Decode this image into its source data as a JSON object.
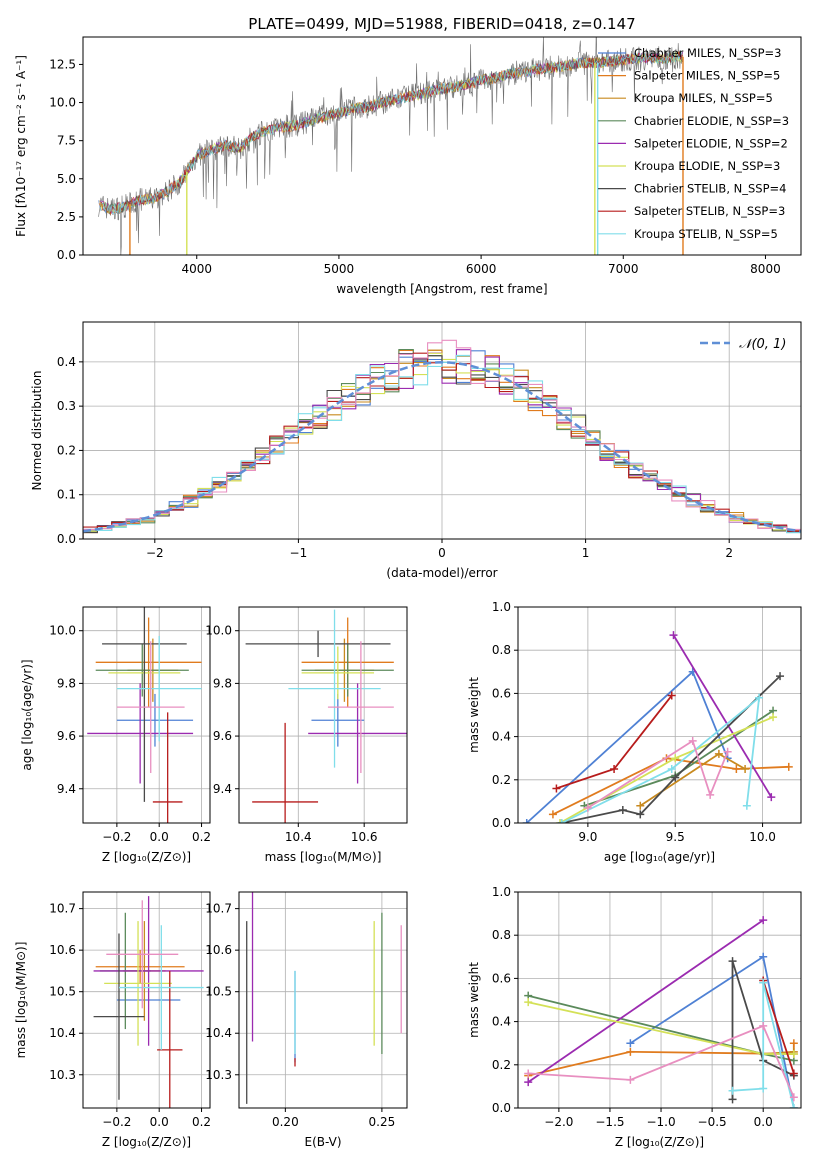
{
  "chart_data": [
    {
      "type": "line",
      "title": "PLATE=0499, MJD=51988, FIBERID=0418, z=0.147",
      "xlabel": "wavelength [Angstrom, rest frame]",
      "ylabel": "Flux [fλ10⁻¹⁷ erg cm⁻² s⁻¹ A⁻¹]",
      "xlim": [
        3200,
        8250
      ],
      "ylim": [
        0,
        14.3
      ],
      "xticks": [
        4000,
        5000,
        6000,
        7000,
        8000
      ],
      "yticks": [
        0.0,
        2.5,
        5.0,
        7.5,
        10.0,
        12.5
      ],
      "legend_position": "upper-right",
      "legend": [
        {
          "name": "Chabrier MILES, N_SSP=3",
          "color": "#4f81d4"
        },
        {
          "name": "Salpeter MILES, N_SSP=5",
          "color": "#e07b1e"
        },
        {
          "name": "Kroupa MILES, N_SSP=5",
          "color": "#c88a1f"
        },
        {
          "name": "Chabrier ELODIE, N_SSP=3",
          "color": "#5b8a5b"
        },
        {
          "name": "Salpeter ELODIE, N_SSP=2",
          "color": "#9b2bb0"
        },
        {
          "name": "Kroupa ELODIE, N_SSP=3",
          "color": "#d4e157"
        },
        {
          "name": "Chabrier STELIB, N_SSP=4",
          "color": "#4a4a4a"
        },
        {
          "name": "Salpeter STELIB, N_SSP=3",
          "color": "#b71c1c"
        },
        {
          "name": "Kroupa STELIB, N_SSP=5",
          "color": "#80deea"
        }
      ],
      "spectrum_shape": [
        [
          3310,
          3.3
        ],
        [
          3400,
          3.0
        ],
        [
          3500,
          3.2
        ],
        [
          3600,
          3.6
        ],
        [
          3700,
          3.7
        ],
        [
          3800,
          4.2
        ],
        [
          3900,
          5.0
        ],
        [
          4000,
          6.5
        ],
        [
          4100,
          6.9
        ],
        [
          4200,
          7.2
        ],
        [
          4300,
          7.0
        ],
        [
          4400,
          7.8
        ],
        [
          4500,
          8.2
        ],
        [
          4600,
          8.4
        ],
        [
          4700,
          8.5
        ],
        [
          4800,
          8.8
        ],
        [
          4900,
          9.1
        ],
        [
          5000,
          9.3
        ],
        [
          5100,
          9.6
        ],
        [
          5200,
          9.7
        ],
        [
          5300,
          10.0
        ],
        [
          5400,
          10.2
        ],
        [
          5500,
          10.4
        ],
        [
          5600,
          10.6
        ],
        [
          5700,
          10.9
        ],
        [
          5800,
          11.0
        ],
        [
          5900,
          11.2
        ],
        [
          6000,
          11.5
        ],
        [
          6100,
          11.6
        ],
        [
          6200,
          11.9
        ],
        [
          6300,
          12.0
        ],
        [
          6400,
          12.2
        ],
        [
          6500,
          12.3
        ],
        [
          6600,
          12.4
        ],
        [
          6700,
          12.6
        ],
        [
          6800,
          12.6
        ],
        [
          6900,
          12.7
        ],
        [
          7000,
          12.8
        ],
        [
          7100,
          12.9
        ],
        [
          7300,
          12.9
        ],
        [
          7400,
          13.0
        ]
      ],
      "range_drops": [
        {
          "x": 3530,
          "color": "#e07b1e"
        },
        {
          "x": 3930,
          "color": "#d4e157"
        },
        {
          "x": 6800,
          "color": "#d4e157"
        },
        {
          "x": 6820,
          "color": "#80deea"
        },
        {
          "x": 7420,
          "color": "#e07b1e"
        }
      ]
    },
    {
      "type": "histogram",
      "xlabel": "(data-model)/error",
      "ylabel": "Normed distribution",
      "xlim": [
        -2.5,
        2.5
      ],
      "ylim": [
        0,
        0.49
      ],
      "xticks": [
        -2,
        -1,
        0,
        1,
        2
      ],
      "yticks": [
        0.0,
        0.1,
        0.2,
        0.3,
        0.4
      ],
      "legend_position": "upper-right",
      "legend": [
        {
          "name": "𝒩(0, 1)",
          "color": "#5f8fd6"
        }
      ],
      "bin_width": 0.1,
      "bin_start": -2.5
    },
    {
      "type": "scatter",
      "xlabel": "Z [log₁₀(Z/Z⊙)]",
      "ylabel": "age  [log₁₀(age/yr)]",
      "xlim": [
        -0.36,
        0.24
      ],
      "ylim": [
        9.27,
        10.09
      ],
      "xticks": [
        -0.2,
        0.0,
        0.2
      ],
      "yticks": [
        9.4,
        9.6,
        9.8,
        10.0
      ],
      "points": [
        {
          "x": -0.02,
          "y": 9.66,
          "xerr": 0.18,
          "yerr": 0.1,
          "color": "#4f81d4"
        },
        {
          "x": -0.05,
          "y": 9.88,
          "xerr": 0.25,
          "yerr": 0.17,
          "color": "#e07b1e"
        },
        {
          "x": -0.03,
          "y": 9.85,
          "xerr": 0.12,
          "yerr": 0.12,
          "color": "#c88a1f"
        },
        {
          "x": -0.08,
          "y": 9.85,
          "xerr": 0.22,
          "yerr": 0.1,
          "color": "#5b8a5b"
        },
        {
          "x": -0.09,
          "y": 9.61,
          "xerr": 0.25,
          "yerr": 0.19,
          "color": "#9b2bb0"
        },
        {
          "x": -0.07,
          "y": 9.84,
          "xerr": 0.17,
          "yerr": 0.1,
          "color": "#d4e157"
        },
        {
          "x": -0.07,
          "y": 9.95,
          "xerr": 0.2,
          "yerr": 0.6,
          "color": "#4a4a4a"
        },
        {
          "x": 0.04,
          "y": 9.35,
          "xerr": 0.07,
          "yerr": 0.34,
          "color": "#b71c1c"
        },
        {
          "x": 0.0,
          "y": 9.78,
          "xerr": 0.2,
          "yerr": 0.2,
          "color": "#80deea"
        },
        {
          "x": -0.04,
          "y": 9.71,
          "xerr": 0.16,
          "yerr": 0.25,
          "color": "#e88fc0"
        }
      ]
    },
    {
      "type": "scatter",
      "xlabel": "mass [log₁₀(M/M⊙)]",
      "ylabel": "",
      "xlim": [
        10.22,
        10.73
      ],
      "ylim": [
        9.27,
        10.09
      ],
      "xticks": [
        10.4,
        10.6
      ],
      "yticks": [
        9.4,
        9.6,
        9.8,
        10.0
      ],
      "points": [
        {
          "x": 10.52,
          "y": 9.66,
          "xerr": 0.08,
          "yerr": 0.1,
          "color": "#4f81d4"
        },
        {
          "x": 10.55,
          "y": 9.88,
          "xerr": 0.14,
          "yerr": 0.17,
          "color": "#e07b1e"
        },
        {
          "x": 10.54,
          "y": 9.85,
          "xerr": 0.09,
          "yerr": 0.12,
          "color": "#c88a1f"
        },
        {
          "x": 10.55,
          "y": 9.85,
          "xerr": 0.14,
          "yerr": 0.1,
          "color": "#5b8a5b"
        },
        {
          "x": 10.58,
          "y": 9.61,
          "xerr": 0.15,
          "yerr": 0.19,
          "color": "#9b2bb0"
        },
        {
          "x": 10.52,
          "y": 9.84,
          "xerr": 0.11,
          "yerr": 0.1,
          "color": "#d4e157"
        },
        {
          "x": 10.46,
          "y": 9.95,
          "xerr": 0.22,
          "yerr": 0.05,
          "color": "#4a4a4a"
        },
        {
          "x": 10.36,
          "y": 9.35,
          "xerr": 0.1,
          "yerr": 0.3,
          "color": "#b71c1c"
        },
        {
          "x": 10.51,
          "y": 9.78,
          "xerr": 0.14,
          "yerr": 0.3,
          "color": "#80deea"
        },
        {
          "x": 10.59,
          "y": 9.71,
          "xerr": 0.1,
          "yerr": 0.25,
          "color": "#e88fc0"
        }
      ]
    },
    {
      "type": "line",
      "xlabel": "age  [log₁₀(age/yr)]",
      "ylabel": "mass weight",
      "xlim": [
        8.6,
        10.22
      ],
      "ylim": [
        0,
        1.0
      ],
      "xticks": [
        9.0,
        9.5,
        10.0
      ],
      "yticks": [
        0.0,
        0.2,
        0.4,
        0.6,
        0.8,
        1.0
      ],
      "series": [
        {
          "color": "#4f81d4",
          "x": [
            8.65,
            9.6,
            9.8
          ],
          "y": [
            0.0,
            0.7,
            0.3
          ]
        },
        {
          "color": "#e07b1e",
          "x": [
            8.8,
            9.45,
            9.85,
            10.15
          ],
          "y": [
            0.04,
            0.3,
            0.25,
            0.26
          ]
        },
        {
          "color": "#c88a1f",
          "x": [
            9.3,
            9.75,
            9.9
          ],
          "y": [
            0.08,
            0.32,
            0.25
          ]
        },
        {
          "color": "#5b8a5b",
          "x": [
            8.98,
            9.5,
            10.06
          ],
          "y": [
            0.08,
            0.22,
            0.52
          ]
        },
        {
          "color": "#9b2bb0",
          "x": [
            9.49,
            10.05
          ],
          "y": [
            0.87,
            0.12
          ]
        },
        {
          "color": "#d4e157",
          "x": [
            8.84,
            9.5,
            10.06
          ],
          "y": [
            0.0,
            0.3,
            0.49
          ]
        },
        {
          "color": "#4a4a4a",
          "x": [
            8.85,
            9.2,
            9.3,
            9.5,
            10.1
          ],
          "y": [
            0.0,
            0.06,
            0.04,
            0.21,
            0.68
          ]
        },
        {
          "color": "#b71c1c",
          "x": [
            8.82,
            9.15,
            9.48
          ],
          "y": [
            0.16,
            0.25,
            0.59
          ]
        },
        {
          "color": "#80deea",
          "x": [
            8.85,
            9.48,
            9.98,
            9.91
          ],
          "y": [
            0.0,
            0.25,
            0.58,
            0.08
          ]
        },
        {
          "color": "#e88fc0",
          "x": [
            9.0,
            9.6,
            9.7,
            9.8
          ],
          "y": [
            0.07,
            0.38,
            0.13,
            0.33
          ]
        }
      ]
    },
    {
      "type": "scatter",
      "xlabel": "Z [log₁₀(Z/Z⊙)]",
      "ylabel": "mass [log₁₀(M/M⊙)]",
      "xlim": [
        -0.36,
        0.24
      ],
      "ylim": [
        10.22,
        10.74
      ],
      "xticks": [
        -0.2,
        0.0,
        0.2
      ],
      "yticks": [
        10.3,
        10.4,
        10.5,
        10.6,
        10.7
      ],
      "points": [
        {
          "x": -0.05,
          "y": 10.48,
          "xerr": 0.15,
          "yerr": 0.0,
          "color": "#4f81d4"
        },
        {
          "x": -0.09,
          "y": 10.56,
          "xerr": 0.21,
          "yerr": 0.04,
          "color": "#e07b1e"
        },
        {
          "x": -0.07,
          "y": 10.55,
          "xerr": 0.1,
          "yerr": 0.12,
          "color": "#c88a1f"
        },
        {
          "x": -0.16,
          "y": 10.55,
          "xerr": 0.12,
          "yerr": 0.14,
          "color": "#5b8a5b"
        },
        {
          "x": -0.05,
          "y": 10.55,
          "xerr": 0.26,
          "yerr": 0.18,
          "color": "#9b2bb0"
        },
        {
          "x": -0.1,
          "y": 10.52,
          "xerr": 0.16,
          "yerr": 0.15,
          "color": "#d4e157"
        },
        {
          "x": -0.19,
          "y": 10.44,
          "xerr": 0.12,
          "yerr": 0.2,
          "color": "#4a4a4a"
        },
        {
          "x": 0.05,
          "y": 10.36,
          "xerr": 0.06,
          "yerr": 0.19,
          "color": "#b71c1c"
        },
        {
          "x": 0.01,
          "y": 10.51,
          "xerr": 0.2,
          "yerr": 0.15,
          "color": "#80deea"
        },
        {
          "x": -0.08,
          "y": 10.59,
          "xerr": 0.17,
          "yerr": 0.13,
          "color": "#e88fc0"
        }
      ]
    },
    {
      "type": "scatter",
      "xlabel": "E(B-V)",
      "ylabel": "",
      "xlim": [
        0.176,
        0.263
      ],
      "ylim": [
        10.22,
        10.74
      ],
      "xticks": [
        0.2,
        0.25
      ],
      "yticks": [
        10.3,
        10.4,
        10.5,
        10.6,
        10.7
      ],
      "points": [
        {
          "x": 0.183,
          "y": 10.56,
          "yerr": 0.18,
          "color": "#9b2bb0"
        },
        {
          "x": 0.18,
          "y": 10.45,
          "yerr": 0.22,
          "color": "#4a4a4a"
        },
        {
          "x": 0.205,
          "y": 10.44,
          "yerr": 0.11,
          "color": "#4f81d4"
        },
        {
          "x": 0.205,
          "y": 10.33,
          "yerr": 0.01,
          "color": "#b71c1c"
        },
        {
          "x": 0.205,
          "y": 10.45,
          "yerr": 0.1,
          "color": "#80deea"
        },
        {
          "x": 0.246,
          "y": 10.52,
          "yerr": 0.15,
          "color": "#d4e157"
        },
        {
          "x": 0.25,
          "y": 10.52,
          "yerr": 0.17,
          "color": "#5b8a5b"
        },
        {
          "x": 0.26,
          "y": 10.53,
          "yerr": 0.13,
          "color": "#e88fc0"
        }
      ]
    },
    {
      "type": "line",
      "xlabel": "Z [log₁₀(Z/Z⊙)]",
      "ylabel": "mass weight",
      "xlim": [
        -2.4,
        0.37
      ],
      "ylim": [
        0,
        1.0
      ],
      "xticks": [
        -2.0,
        -1.5,
        -1.0,
        -0.5,
        0.0
      ],
      "yticks": [
        0.0,
        0.2,
        0.4,
        0.6,
        0.8,
        1.0
      ],
      "series": [
        {
          "color": "#4f81d4",
          "x": [
            -1.3,
            0.0,
            0.3
          ],
          "y": [
            0.3,
            0.7,
            0.0
          ]
        },
        {
          "color": "#e07b1e",
          "x": [
            -2.3,
            -1.3,
            0.3,
            0.3
          ],
          "y": [
            0.15,
            0.26,
            0.25,
            0.3
          ]
        },
        {
          "color": "#c88a1f",
          "x": [
            0.0,
            0.3
          ],
          "y": [
            0.25,
            0.26
          ]
        },
        {
          "color": "#5b8a5b",
          "x": [
            -2.3,
            0.0,
            0.3
          ],
          "y": [
            0.52,
            0.25,
            0.22
          ]
        },
        {
          "color": "#9b2bb0",
          "x": [
            -2.3,
            0.0
          ],
          "y": [
            0.12,
            0.87
          ]
        },
        {
          "color": "#d4e157",
          "x": [
            -2.3,
            0.0,
            0.3
          ],
          "y": [
            0.49,
            0.25,
            0.25
          ]
        },
        {
          "color": "#4a4a4a",
          "x": [
            -0.3,
            -0.3,
            0.0,
            0.3
          ],
          "y": [
            0.04,
            0.68,
            0.22,
            0.15
          ]
        },
        {
          "color": "#b71c1c",
          "x": [
            0.0,
            0.3
          ],
          "y": [
            0.59,
            0.16
          ]
        },
        {
          "color": "#80deea",
          "x": [
            -0.3,
            0.0,
            0.0,
            0.3
          ],
          "y": [
            0.08,
            0.09,
            0.58,
            0.0
          ]
        },
        {
          "color": "#e88fc0",
          "x": [
            -2.3,
            -1.3,
            0.0,
            0.3
          ],
          "y": [
            0.16,
            0.13,
            0.38,
            0.05
          ]
        }
      ]
    }
  ]
}
